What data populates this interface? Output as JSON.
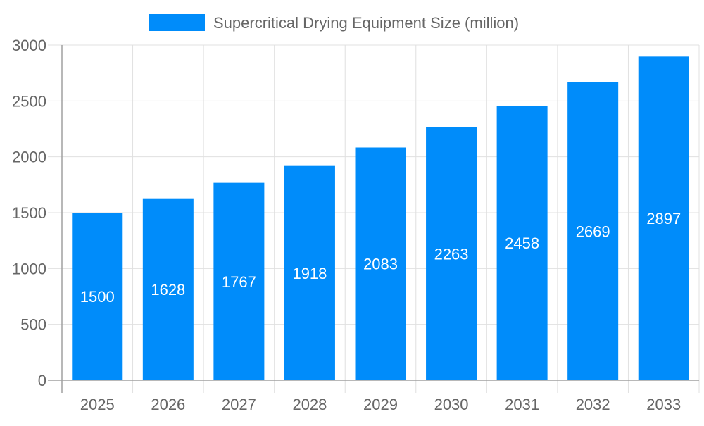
{
  "chart_data": {
    "type": "bar",
    "categories": [
      "2025",
      "2026",
      "2027",
      "2028",
      "2029",
      "2030",
      "2031",
      "2032",
      "2033"
    ],
    "series": [
      {
        "name": "Supercritical Drying Equipment Size (million)",
        "values": [
          1500,
          1628,
          1767,
          1918,
          2083,
          2263,
          2458,
          2669,
          2897
        ]
      }
    ],
    "yticks": [
      0,
      500,
      1000,
      1500,
      2000,
      2500,
      3000
    ],
    "ylim": [
      0,
      3000
    ],
    "grid": true,
    "legend_position": "top",
    "data_labels": true,
    "colors": {
      "bar": "#008cfa",
      "grid": "#e0e0e0",
      "axis": "#a0a0a0",
      "text": "#666666",
      "label": "#ffffff"
    }
  }
}
